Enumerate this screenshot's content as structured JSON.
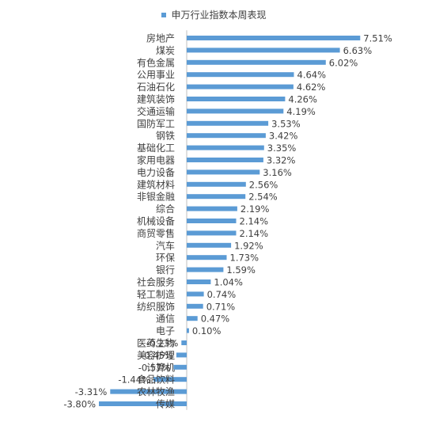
{
  "chart_data": {
    "type": "bar",
    "orientation": "horizontal",
    "legend_position": "top",
    "grid": false,
    "xlim": [
      -4.5,
      7.8
    ],
    "series": [
      {
        "name": "申万行业指数本周表现",
        "color": "#5b9bd5"
      }
    ],
    "categories": [
      "房地产",
      "煤炭",
      "有色金属",
      "公用事业",
      "石油石化",
      "建筑装饰",
      "交通运输",
      "国防军工",
      "钢铁",
      "基础化工",
      "家用电器",
      "电力设备",
      "建筑材料",
      "非银金融",
      "综合",
      "机械设备",
      "商贸零售",
      "汽车",
      "环保",
      "银行",
      "社会服务",
      "轻工制造",
      "纺织服饰",
      "通信",
      "电子",
      "医药生物",
      "美容护理",
      "计算机",
      "食品饮料",
      "农林牧渔",
      "传媒"
    ],
    "values": [
      7.51,
      6.63,
      6.02,
      4.64,
      4.62,
      4.26,
      4.19,
      3.53,
      3.42,
      3.35,
      3.32,
      3.16,
      2.56,
      2.54,
      2.19,
      2.14,
      2.14,
      1.92,
      1.73,
      1.59,
      1.04,
      0.74,
      0.71,
      0.47,
      0.1,
      -0.23,
      -0.45,
      -0.57,
      -1.44,
      -3.31,
      -3.8
    ],
    "labels": [
      "7.51%",
      "6.63%",
      "6.02%",
      "4.64%",
      "4.62%",
      "4.26%",
      "4.19%",
      "3.53%",
      "3.42%",
      "3.35%",
      "3.32%",
      "3.16%",
      "2.56%",
      "2.54%",
      "2.19%",
      "2.14%",
      "2.14%",
      "1.92%",
      "1.73%",
      "1.59%",
      "1.04%",
      "0.74%",
      "0.71%",
      "0.47%",
      "0.10%",
      "-0.23%",
      "-0.45%",
      "-0.57%",
      "-1.44%",
      "-3.31%",
      "-3.80%"
    ]
  }
}
